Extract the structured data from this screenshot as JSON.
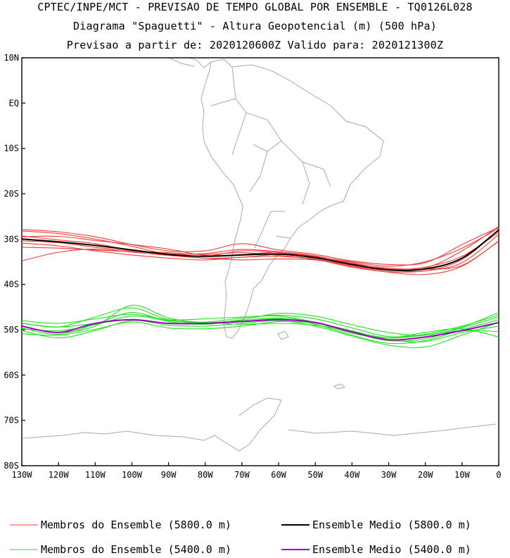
{
  "chart_data": {
    "type": "line",
    "title": "CPTEC/INPE/MCT - PREVISAO DE TEMPO GLOBAL POR ENSEMBLE - TQ0126L028",
    "subtitle": "Diagrama \"Spaguetti\" - Altura Geopotencial (m) (500 hPa)",
    "subtitle2": "Previsao a partir de: 2020120600Z  Valido para: 2020121300Z",
    "xlim": [
      -130,
      0
    ],
    "ylim": [
      -80,
      10
    ],
    "x_tick_values": [
      -130,
      -120,
      -110,
      -100,
      -90,
      -80,
      -70,
      -60,
      -50,
      -40,
      -30,
      -20,
      -10,
      0
    ],
    "x_tick_labels": [
      "130W",
      "120W",
      "110W",
      "100W",
      "90W",
      "80W",
      "70W",
      "60W",
      "50W",
      "40W",
      "30W",
      "20W",
      "10W",
      "0"
    ],
    "y_tick_values": [
      10,
      0,
      -10,
      -20,
      -30,
      -40,
      -50,
      -60,
      -70,
      -80
    ],
    "y_tick_labels": [
      "10N",
      "EQ",
      "10S",
      "20S",
      "30S",
      "40S",
      "50S",
      "60S",
      "70S",
      "80S"
    ],
    "grid": false,
    "legend_position": "bottom",
    "x": [
      -130,
      -120,
      -110,
      -100,
      -90,
      -80,
      -70,
      -60,
      -50,
      -40,
      -30,
      -20,
      -10,
      0
    ],
    "series": [
      {
        "name": "Membros do Ensemble (5800.0 m) #1",
        "color": "#f03c3c",
        "values": [
          -29.3,
          -30.2,
          -31.0,
          -32.5,
          -33.3,
          -33.2,
          -32.3,
          -32.8,
          -33.8,
          -35.2,
          -36.6,
          -36.2,
          -33.8,
          -28.5
        ]
      },
      {
        "name": "Membros do Ensemble (5800.0 m) #2",
        "color": "#f03c3c",
        "values": [
          -30.4,
          -30.8,
          -31.8,
          -32.6,
          -33.0,
          -33.4,
          -33.0,
          -33.6,
          -34.4,
          -36.0,
          -37.2,
          -37.0,
          -35.2,
          -29.0
        ]
      },
      {
        "name": "Membros do Ensemble (5800.0 m) #3",
        "color": "#f03c3c",
        "values": [
          -28.2,
          -28.8,
          -30.0,
          -31.6,
          -33.4,
          -34.2,
          -34.0,
          -33.4,
          -33.9,
          -35.0,
          -36.0,
          -35.0,
          -32.0,
          -27.6
        ]
      },
      {
        "name": "Membros do Ensemble (5800.0 m) #4",
        "color": "#f03c3c",
        "values": [
          -30.9,
          -31.5,
          -32.6,
          -33.5,
          -34.2,
          -34.6,
          -34.0,
          -33.8,
          -34.5,
          -36.2,
          -37.3,
          -37.8,
          -36.0,
          -30.4
        ]
      },
      {
        "name": "Membros do Ensemble (5800.0 m) #5",
        "color": "#f03c3c",
        "values": [
          -27.9,
          -28.4,
          -29.5,
          -31.2,
          -32.6,
          -32.6,
          -31.0,
          -32.4,
          -33.4,
          -34.8,
          -35.6,
          -35.2,
          -31.2,
          -27.4
        ]
      },
      {
        "name": "Membros do Ensemble (5800.0 m) #6",
        "color": "#f03c3c",
        "values": [
          -34.8,
          -32.9,
          -32.2,
          -32.9,
          -33.6,
          -34.2,
          -34.6,
          -34.4,
          -34.6,
          -35.7,
          -36.8,
          -37.0,
          -34.5,
          -28.0
        ]
      },
      {
        "name": "Membros do Ensemble (5800.0 m) #7",
        "color": "#f03c3c",
        "values": [
          -29.5,
          -29.4,
          -30.3,
          -31.2,
          -32.2,
          -33.6,
          -33.4,
          -32.9,
          -33.7,
          -35.4,
          -36.4,
          -36.6,
          -35.8,
          -30.5
        ]
      },
      {
        "name": "Membros do Ensemble (5800.0 m) #8",
        "color": "#f03c3c",
        "values": [
          -31.8,
          -32.0,
          -32.4,
          -32.8,
          -33.2,
          -33.8,
          -32.6,
          -33.0,
          -34.0,
          -35.8,
          -36.9,
          -36.4,
          -32.6,
          -27.2
        ]
      },
      {
        "name": "Ensemble Medio (5800.0 m)",
        "color": "#000000",
        "values": [
          -30.0,
          -30.6,
          -31.4,
          -32.4,
          -33.4,
          -33.8,
          -33.5,
          -33.3,
          -34.1,
          -35.6,
          -36.8,
          -36.6,
          -34.2,
          -28.0
        ]
      },
      {
        "name": "Membros do Ensemble (5400.0 m) #1",
        "color": "#22e022",
        "values": [
          -48.5,
          -49.4,
          -47.2,
          -45.2,
          -47.8,
          -48.3,
          -47.4,
          -46.8,
          -47.6,
          -49.6,
          -51.5,
          -51.0,
          -49.2,
          -46.8
        ]
      },
      {
        "name": "Membros do Ensemble (5400.0 m) #2",
        "color": "#22e022",
        "values": [
          -49.6,
          -51.0,
          -48.8,
          -46.2,
          -48.2,
          -48.8,
          -48.0,
          -47.4,
          -48.4,
          -50.6,
          -52.4,
          -52.0,
          -49.6,
          -47.2
        ]
      },
      {
        "name": "Membros do Ensemble (5400.0 m) #3",
        "color": "#22e022",
        "values": [
          -50.2,
          -51.8,
          -50.2,
          -48.0,
          -49.0,
          -49.2,
          -48.6,
          -48.0,
          -49.2,
          -51.4,
          -53.4,
          -53.8,
          -51.2,
          -48.4
        ]
      },
      {
        "name": "Membros do Ensemble (5400.0 m) #4",
        "color": "#22e022",
        "values": [
          -48.6,
          -49.4,
          -48.6,
          -47.8,
          -48.6,
          -48.4,
          -48.8,
          -48.6,
          -49.0,
          -50.4,
          -51.8,
          -51.2,
          -50.2,
          -50.4
        ]
      },
      {
        "name": "Membros do Ensemble (5400.0 m) #5",
        "color": "#22e022",
        "values": [
          -49.2,
          -50.6,
          -49.2,
          -44.6,
          -47.4,
          -48.4,
          -47.8,
          -46.4,
          -47.0,
          -48.9,
          -50.6,
          -51.2,
          -49.4,
          -46.2
        ]
      },
      {
        "name": "Membros do Ensemble (5400.0 m) #6",
        "color": "#22e022",
        "values": [
          -50.9,
          -51.2,
          -49.9,
          -48.3,
          -49.6,
          -49.8,
          -49.2,
          -48.2,
          -48.6,
          -50.2,
          -52.2,
          -52.6,
          -50.6,
          -49.2
        ]
      },
      {
        "name": "Membros do Ensemble (5400.0 m) #7",
        "color": "#22e022",
        "values": [
          -48.0,
          -48.6,
          -47.6,
          -46.6,
          -47.8,
          -47.6,
          -47.2,
          -47.0,
          -48.4,
          -50.8,
          -51.8,
          -50.6,
          -49.8,
          -51.6
        ]
      },
      {
        "name": "Membros do Ensemble (5400.0 m) #8",
        "color": "#22e022",
        "values": [
          -49.8,
          -50.2,
          -48.9,
          -47.0,
          -48.0,
          -48.6,
          -48.2,
          -47.6,
          -48.8,
          -51.2,
          -53.0,
          -52.4,
          -50.0,
          -47.8
        ]
      },
      {
        "name": "Ensemble Medio (5400.0 m)",
        "color": "#a000c0",
        "values": [
          -49.2,
          -50.6,
          -48.6,
          -47.8,
          -48.6,
          -48.6,
          -48.2,
          -47.8,
          -48.4,
          -50.5,
          -52.2,
          -51.6,
          -50.2,
          -48.4
        ]
      }
    ],
    "legend": [
      {
        "label": "Membros do Ensemble (5800.0 m)",
        "color": "#f03c3c"
      },
      {
        "label": "Ensemble Medio (5800.0 m)",
        "color": "#000000"
      },
      {
        "label": "Membros do Ensemble (5400.0 m)",
        "color": "#22e022"
      },
      {
        "label": "Ensemble Medio (5400.0 m)",
        "color": "#a000c0"
      }
    ]
  }
}
